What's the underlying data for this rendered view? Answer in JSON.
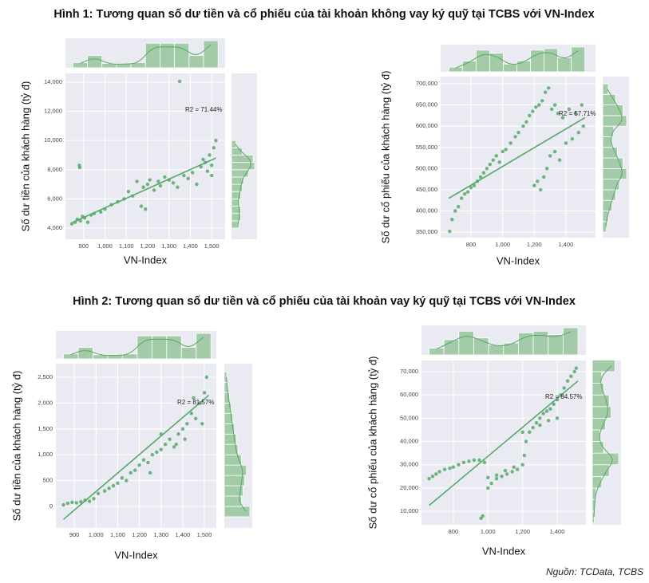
{
  "figure_titles": [
    "Hình 1: Tương quan số dư tiền và cổ phiếu của tài khoản không vay ký quỹ tại TCBS với VN-Index",
    "Hình 2: Tương quan số dư tiền và cổ phiếu của tài khoản vay ký quỹ tại TCBS với VN-Index"
  ],
  "source": "Nguồn: TCData, TCBS",
  "chart_data": [
    {
      "type": "scatter",
      "xlabel": "VN-Index",
      "ylabel": "Số dư tiền của khách hàng (tỷ đ)",
      "annotation": "R2 = 71.44%",
      "color": "#55a868",
      "hist_color": "#a3cba8",
      "grid": true,
      "xlim": [
        815,
        1563
      ],
      "ylim": [
        3235,
        14600
      ],
      "xticks": [
        900,
        {
          "value": 1000,
          "label": "1,000"
        },
        {
          "value": 1100,
          "label": "1,100"
        },
        {
          "value": 1200,
          "label": "1,200"
        },
        {
          "value": 1300,
          "label": "1,300"
        },
        {
          "value": 1400,
          "label": "1,400"
        },
        {
          "value": 1500,
          "label": "1,500"
        }
      ],
      "yticks": [
        {
          "value": 4000,
          "label": "4,000"
        },
        {
          "value": 6000,
          "label": "6,000"
        },
        {
          "value": 8000,
          "label": "8,000"
        },
        {
          "value": 10000,
          "label": "10,000"
        },
        {
          "value": 12000,
          "label": "12,000"
        },
        {
          "value": 14000,
          "label": "14,000"
        }
      ],
      "x": [
        845,
        860,
        870,
        885,
        895,
        905,
        920,
        935,
        950,
        880,
        882,
        980,
        1000,
        1030,
        1060,
        1090,
        1110,
        1130,
        1150,
        1170,
        1180,
        1190,
        1200,
        1210,
        1230,
        1250,
        1260,
        1280,
        1300,
        1320,
        1340,
        1350,
        1370,
        1390,
        1410,
        1430,
        1450,
        1470,
        1480,
        1490,
        1500,
        1510,
        1520,
        1500,
        1460
      ],
      "y": [
        4300,
        4400,
        4600,
        4500,
        4800,
        4700,
        4400,
        4900,
        5000,
        8300,
        8150,
        5100,
        5300,
        5600,
        5800,
        6000,
        6500,
        6200,
        7200,
        5500,
        6800,
        5300,
        7000,
        7300,
        6600,
        7200,
        6900,
        7500,
        7300,
        7100,
        6800,
        14050,
        7600,
        7400,
        7800,
        7000,
        8200,
        8500,
        7900,
        9000,
        8300,
        9500,
        10000,
        7600,
        8700
      ],
      "fit": {
        "x": [
          850,
          1520
        ],
        "y": [
          4400,
          8800
        ]
      },
      "x_hist": {
        "bins": [
          850,
          918,
          986,
          1054,
          1122,
          1190,
          1258,
          1326,
          1394,
          1462,
          1530
        ],
        "counts": [
          6,
          14,
          5,
          5,
          6,
          28,
          28,
          28,
          14,
          31
        ]
      },
      "y_hist": {
        "bins": [
          4000,
          4500,
          5000,
          5500,
          6000,
          6500,
          7000,
          7500,
          8000,
          8500,
          9000,
          9500,
          10000
        ],
        "counts": [
          10,
          12,
          12,
          10,
          12,
          14,
          16,
          22,
          30,
          28,
          14,
          6
        ]
      }
    },
    {
      "type": "scatter",
      "xlabel": "VN-Index",
      "ylabel": "Số dư cổ phiếu của khách hàng (tỷ đ)",
      "annotation": "R2 = 57.71%",
      "color": "#55a868",
      "hist_color": "#a3cba8",
      "grid": true,
      "xlim": [
        608,
        1587
      ],
      "ylim": [
        337000,
        717000
      ],
      "xticks": [
        800,
        {
          "value": 1000,
          "label": "1,000"
        },
        {
          "value": 1200,
          "label": "1,200"
        },
        {
          "value": 1400,
          "label": "1,400"
        }
      ],
      "yticks": [
        {
          "value": 350000,
          "label": "350,000"
        },
        {
          "value": 400000,
          "label": "400,000"
        },
        {
          "value": 450000,
          "label": "450,000"
        },
        {
          "value": 500000,
          "label": "500,000"
        },
        {
          "value": 550000,
          "label": "550,000"
        },
        {
          "value": 600000,
          "label": "600,000"
        },
        {
          "value": 650000,
          "label": "650,000"
        },
        {
          "value": 700000,
          "label": "700,000"
        }
      ],
      "x": [
        665,
        680,
        700,
        720,
        740,
        760,
        780,
        800,
        820,
        840,
        860,
        880,
        900,
        920,
        940,
        960,
        980,
        1000,
        1020,
        1050,
        1080,
        1100,
        1130,
        1150,
        1170,
        1190,
        1210,
        1230,
        1250,
        1270,
        1290,
        1310,
        1330,
        1350,
        1200,
        1220,
        1240,
        1260,
        1280,
        1300,
        1330,
        1360,
        1400,
        1440,
        1480,
        1510,
        1380,
        1420,
        1460,
        1500
      ],
      "y": [
        352000,
        380000,
        400000,
        410000,
        430000,
        440000,
        445000,
        455000,
        460000,
        470000,
        480000,
        490000,
        500000,
        510000,
        520000,
        530000,
        515000,
        540000,
        545000,
        560000,
        575000,
        585000,
        600000,
        610000,
        625000,
        635000,
        645000,
        650000,
        660000,
        680000,
        690000,
        640000,
        650000,
        630000,
        460000,
        470000,
        450000,
        480000,
        500000,
        530000,
        540000,
        520000,
        560000,
        570000,
        585000,
        600000,
        620000,
        640000,
        630000,
        650000
      ],
      "fit": {
        "x": [
          660,
          1520
        ],
        "y": [
          430000,
          620000
        ]
      },
      "x_hist": {
        "bins": [
          660,
          746,
          832,
          918,
          1004,
          1090,
          1176,
          1262,
          1348,
          1434,
          1520
        ],
        "counts": [
          6,
          14,
          28,
          24,
          10,
          14,
          28,
          30,
          18,
          32
        ]
      },
      "y_hist": {
        "bins": [
          350000,
          375000,
          400000,
          425000,
          450000,
          475000,
          500000,
          525000,
          550000,
          575000,
          600000,
          625000,
          650000,
          675000,
          700000
        ],
        "counts": [
          4,
          6,
          10,
          14,
          18,
          26,
          22,
          16,
          10,
          12,
          26,
          22,
          14,
          6
        ]
      }
    },
    {
      "type": "scatter",
      "xlabel": "VN-Index",
      "ylabel": "Số dư tiền của khách hàng (tỷ đ)",
      "annotation": "R2 = 81.57%",
      "color": "#55a868",
      "hist_color": "#a3cba8",
      "grid": true,
      "xlim": [
        815,
        1555
      ],
      "ylim": [
        -417,
        2762
      ],
      "xticks": [
        900,
        {
          "value": 1000,
          "label": "1,000"
        },
        {
          "value": 1100,
          "label": "1,100"
        },
        {
          "value": 1200,
          "label": "1,200"
        },
        {
          "value": 1300,
          "label": "1,300"
        },
        {
          "value": 1400,
          "label": "1,400"
        },
        {
          "value": 1500,
          "label": "1,500"
        }
      ],
      "yticks": [
        0,
        500,
        {
          "value": 1000,
          "label": "1,000"
        },
        {
          "value": 1500,
          "label": "1,500"
        },
        {
          "value": 2000,
          "label": "2,000"
        },
        {
          "value": 2500,
          "label": "2,500"
        }
      ],
      "x": [
        850,
        870,
        890,
        910,
        930,
        950,
        970,
        990,
        1010,
        1040,
        1060,
        1080,
        1100,
        1120,
        1140,
        1160,
        1180,
        1200,
        1220,
        1240,
        1260,
        1280,
        1300,
        1320,
        1340,
        1360,
        1380,
        1400,
        1420,
        1440,
        1460,
        1480,
        1500,
        1510,
        1490,
        1450,
        1410,
        1370,
        1300,
        1250
      ],
      "y": [
        30,
        60,
        80,
        70,
        90,
        120,
        100,
        150,
        250,
        300,
        350,
        400,
        450,
        550,
        500,
        650,
        700,
        800,
        900,
        850,
        1000,
        1050,
        1100,
        1200,
        1300,
        1150,
        1400,
        1500,
        1600,
        1800,
        1700,
        2000,
        2200,
        2500,
        1600,
        2100,
        1300,
        1200,
        1400,
        650
      ],
      "fit": {
        "x": [
          850,
          1520
        ],
        "y": [
          -250,
          2150
        ]
      },
      "x_hist": {
        "bins": [
          850,
          918,
          986,
          1054,
          1122,
          1190,
          1258,
          1326,
          1394,
          1462,
          1530
        ],
        "counts": [
          6,
          14,
          5,
          5,
          6,
          28,
          28,
          28,
          14,
          31
        ]
      },
      "y_hist": {
        "bins": [
          -200,
          0,
          200,
          400,
          600,
          800,
          1000,
          1200,
          1400,
          1600,
          1800,
          2000,
          2200,
          2400,
          2600
        ],
        "counts": [
          30,
          20,
          22,
          24,
          26,
          20,
          16,
          14,
          12,
          10,
          8,
          6,
          4,
          3
        ]
      }
    },
    {
      "type": "scatter",
      "xlabel": "VN-Index",
      "ylabel": "Số dư cổ phiếu của khách hàng (tỷ đ)",
      "annotation": "R2 = 84.57%",
      "color": "#55a868",
      "hist_color": "#a3cba8",
      "grid": true,
      "xlim": [
        616,
        1566
      ],
      "ylim": [
        4200,
        74800
      ],
      "xticks": [
        800,
        {
          "value": 1000,
          "label": "1,000"
        },
        {
          "value": 1200,
          "label": "1,200"
        },
        {
          "value": 1400,
          "label": "1,400"
        }
      ],
      "yticks": [
        {
          "value": 10000,
          "label": "10,000"
        },
        {
          "value": 20000,
          "label": "20,000"
        },
        {
          "value": 30000,
          "label": "30,000"
        },
        {
          "value": 40000,
          "label": "40,000"
        },
        {
          "value": 50000,
          "label": "50,000"
        },
        {
          "value": 60000,
          "label": "60,000"
        },
        {
          "value": 70000,
          "label": "70,000"
        }
      ],
      "x": [
        660,
        680,
        700,
        720,
        750,
        780,
        800,
        830,
        860,
        890,
        920,
        950,
        980,
        1000,
        1020,
        1050,
        1080,
        1110,
        1140,
        1170,
        1200,
        1210,
        1220,
        1240,
        1260,
        1280,
        1300,
        1320,
        1340,
        1360,
        1380,
        1400,
        1420,
        1440,
        1460,
        1480,
        1500,
        1510,
        960,
        970,
        1000,
        1050,
        1100,
        1150,
        1200,
        1300,
        1350,
        1400
      ],
      "y": [
        24000,
        25000,
        26000,
        27000,
        28000,
        28500,
        29000,
        30000,
        31000,
        31500,
        32000,
        32000,
        31000,
        20000,
        22000,
        24000,
        25000,
        26000,
        27000,
        28000,
        30000,
        34000,
        40000,
        44000,
        46000,
        48000,
        50000,
        52000,
        53000,
        54000,
        56000,
        58000,
        60000,
        63000,
        66000,
        68000,
        70000,
        71500,
        7000,
        8000,
        24500,
        25500,
        27500,
        29000,
        44000,
        47000,
        49000,
        50000
      ],
      "fit": {
        "x": [
          660,
          1520
        ],
        "y": [
          12500,
          66000
        ]
      },
      "x_hist": {
        "bins": [
          660,
          746,
          832,
          918,
          1004,
          1090,
          1176,
          1262,
          1348,
          1434,
          1520
        ],
        "counts": [
          8,
          18,
          28,
          20,
          12,
          14,
          26,
          28,
          24,
          32
        ]
      },
      "y_hist": {
        "bins": [
          5000,
          10000,
          15000,
          20000,
          25000,
          30000,
          35000,
          40000,
          45000,
          50000,
          55000,
          60000,
          65000,
          70000,
          75000
        ],
        "counts": [
          2,
          3,
          4,
          10,
          18,
          28,
          12,
          8,
          14,
          20,
          18,
          12,
          10,
          24
        ]
      }
    }
  ]
}
